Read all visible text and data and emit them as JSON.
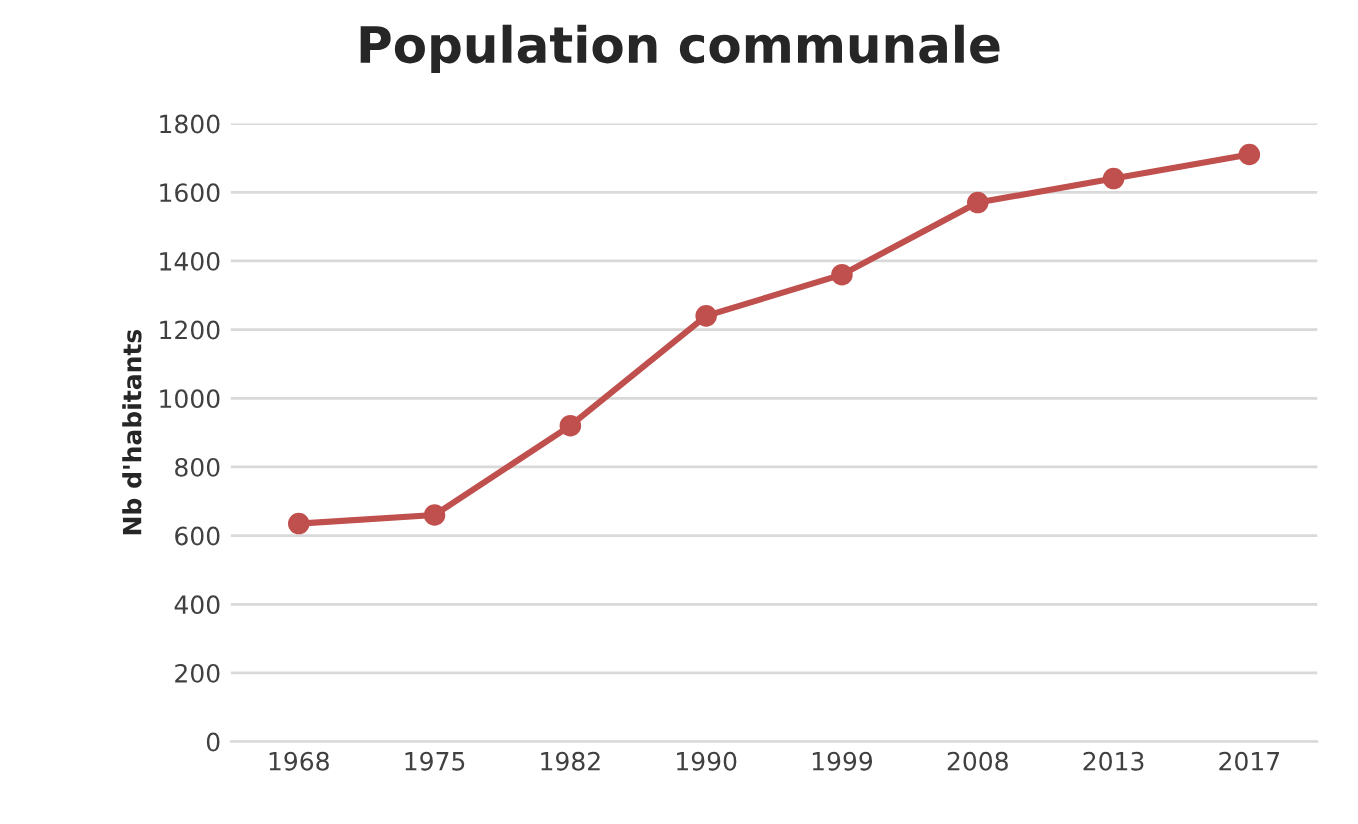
{
  "chart_data": {
    "type": "line",
    "title": "Population communale",
    "ylabel": "Nb d'habitants",
    "categories": [
      "1968",
      "1975",
      "1982",
      "1990",
      "1999",
      "2008",
      "2013",
      "2017"
    ],
    "series": [
      {
        "color": "#c0504d",
        "values": [
          635,
          660,
          920,
          1240,
          1360,
          1570,
          1640,
          1710
        ]
      }
    ],
    "ylim": [
      0,
      1800
    ],
    "yticks": [
      0,
      200,
      400,
      600,
      800,
      1000,
      1200,
      1400,
      1600,
      1800
    ],
    "grid": "y",
    "marker": "circle",
    "line_style": "solid"
  }
}
